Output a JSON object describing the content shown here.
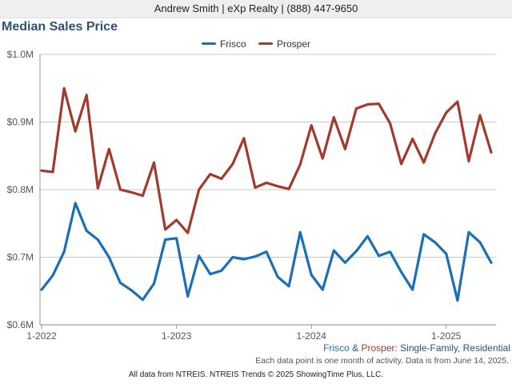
{
  "header": {
    "agent": "Andrew Smith | eXp Realty | (888) 447-9650"
  },
  "chart_data": {
    "type": "line",
    "title": "Median Sales Price",
    "x": [
      "2022-01",
      "2022-02",
      "2022-03",
      "2022-04",
      "2022-05",
      "2022-06",
      "2022-07",
      "2022-08",
      "2022-09",
      "2022-10",
      "2022-11",
      "2022-12",
      "2023-01",
      "2023-02",
      "2023-03",
      "2023-04",
      "2023-05",
      "2023-06",
      "2023-07",
      "2023-08",
      "2023-09",
      "2023-10",
      "2023-11",
      "2023-12",
      "2024-01",
      "2024-02",
      "2024-03",
      "2024-04",
      "2024-05",
      "2024-06",
      "2024-07",
      "2024-08",
      "2024-09",
      "2024-10",
      "2024-11",
      "2024-12",
      "2025-01",
      "2025-02",
      "2025-03",
      "2025-04",
      "2025-05"
    ],
    "xticks": [
      "1-2022",
      "1-2023",
      "1-2024",
      "1-2025"
    ],
    "ylim": [
      0.6,
      1.0
    ],
    "yticks": [
      0.6,
      0.7,
      0.8,
      0.9,
      1.0
    ],
    "ytick_labels": [
      "$0.6M",
      "$0.7M",
      "$0.8M",
      "$0.9M",
      "$1.0M"
    ],
    "series": [
      {
        "name": "Frisco",
        "color": "#1a6fb5",
        "values": [
          0.652,
          0.673,
          0.708,
          0.78,
          0.739,
          0.726,
          0.7,
          0.662,
          0.651,
          0.637,
          0.661,
          0.726,
          0.728,
          0.642,
          0.702,
          0.675,
          0.68,
          0.7,
          0.697,
          0.701,
          0.708,
          0.671,
          0.657,
          0.737,
          0.674,
          0.652,
          0.71,
          0.692,
          0.709,
          0.731,
          0.702,
          0.708,
          0.678,
          0.652,
          0.734,
          0.722,
          0.705,
          0.636,
          0.737,
          0.722,
          0.692
        ]
      },
      {
        "name": "Prosper",
        "color": "#a33a2e",
        "values": [
          0.828,
          0.826,
          0.95,
          0.886,
          0.94,
          0.802,
          0.86,
          0.8,
          0.796,
          0.791,
          0.84,
          0.741,
          0.755,
          0.736,
          0.8,
          0.823,
          0.816,
          0.838,
          0.876,
          0.803,
          0.81,
          0.805,
          0.801,
          0.837,
          0.895,
          0.846,
          0.907,
          0.86,
          0.92,
          0.926,
          0.927,
          0.898,
          0.838,
          0.875,
          0.84,
          0.883,
          0.914,
          0.93,
          0.842,
          0.91,
          0.855
        ]
      }
    ],
    "grid": true,
    "legend": "top-center"
  },
  "subtitle": {
    "prefix": "Frisco",
    "amp": " & ",
    "second": "Prosper",
    "suffix": ": Single-Family, Residential"
  },
  "note": "Each data point is one month of activity. Data is from June 14, 2025.",
  "footer": "All data from NTREIS. NTREIS Trends © 2025 ShowingTime Plus, LLC."
}
